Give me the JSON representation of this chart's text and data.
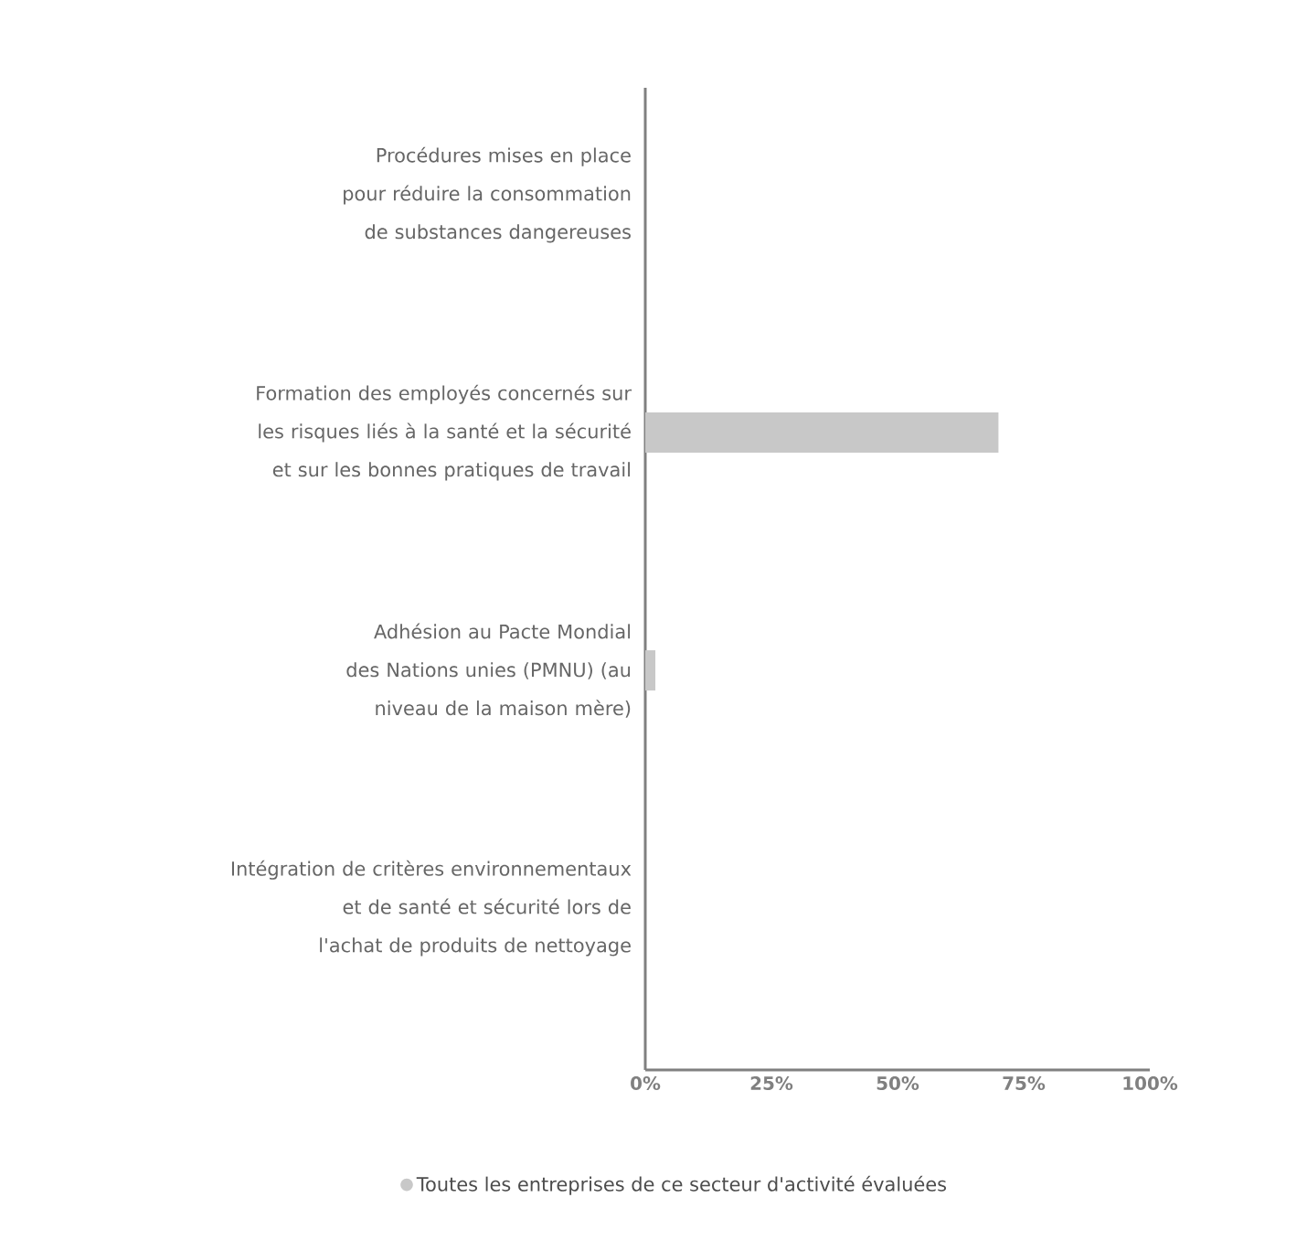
{
  "chart_data": {
    "type": "bar",
    "orientation": "horizontal",
    "categories": [
      "Procédures mises en place pour réduire la consommation de substances dangereuses",
      "Formation des employés concernés sur les risques liés à la santé et la sécurité et sur les bonnes pratiques de travail",
      "Adhésion au Pacte Mondial des Nations unies (PMNU) (au niveau de la maison mère)",
      "Intégration de critères environnementaux et de santé et sécurité lors de l'achat de produits de nettoyage"
    ],
    "series": [
      {
        "name": "Toutes les entreprises de ce secteur d'activité évaluées",
        "color": "#c8c8c8",
        "values": [
          0,
          70,
          2,
          0
        ]
      }
    ],
    "xlim": [
      0,
      100
    ],
    "xticks": [
      {
        "value": 0,
        "label": "0%"
      },
      {
        "value": 25,
        "label": "25%"
      },
      {
        "value": 50,
        "label": "50%"
      },
      {
        "value": 75,
        "label": "75%"
      },
      {
        "value": 100,
        "label": "100%"
      }
    ],
    "grid": false,
    "legend": "bottom"
  }
}
